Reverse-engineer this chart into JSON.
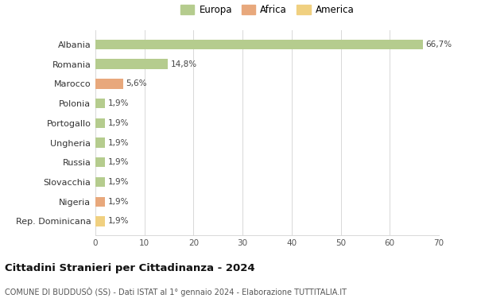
{
  "categories": [
    "Albania",
    "Romania",
    "Marocco",
    "Polonia",
    "Portogallo",
    "Ungheria",
    "Russia",
    "Slovacchia",
    "Nigeria",
    "Rep. Dominicana"
  ],
  "values": [
    66.7,
    14.8,
    5.6,
    1.9,
    1.9,
    1.9,
    1.9,
    1.9,
    1.9,
    1.9
  ],
  "labels": [
    "66,7%",
    "14,8%",
    "5,6%",
    "1,9%",
    "1,9%",
    "1,9%",
    "1,9%",
    "1,9%",
    "1,9%",
    "1,9%"
  ],
  "colors": [
    "#b5cc8e",
    "#b5cc8e",
    "#e8a87c",
    "#b5cc8e",
    "#b5cc8e",
    "#b5cc8e",
    "#b5cc8e",
    "#b5cc8e",
    "#e8a87c",
    "#f0d080"
  ],
  "legend_labels": [
    "Europa",
    "Africa",
    "America"
  ],
  "legend_colors": [
    "#b5cc8e",
    "#e8a87c",
    "#f0d080"
  ],
  "xlim": [
    0,
    70
  ],
  "xticks": [
    0,
    10,
    20,
    30,
    40,
    50,
    60,
    70
  ],
  "title": "Cittadini Stranieri per Cittadinanza - 2024",
  "subtitle": "COMUNE DI BUDDUSÒ (SS) - Dati ISTAT al 1° gennaio 2024 - Elaborazione TUTTITALIA.IT",
  "background_color": "#ffffff",
  "bar_height": 0.5,
  "grid_color": "#d8d8d8"
}
